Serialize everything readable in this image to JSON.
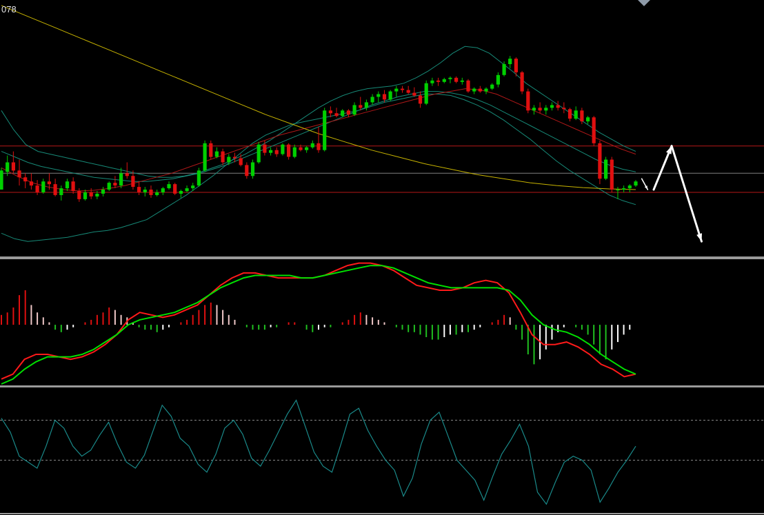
{
  "header": {
    "price_label": "078"
  },
  "colors": {
    "background": "#000000",
    "bull": "#00d000",
    "bear": "#e01010",
    "ma_long": "#c8b400",
    "ma_mid": "#b01818",
    "bands": "#178a78",
    "hline": "#b81818",
    "hline_mid": "#808080",
    "panel_border": "#a0a0a0",
    "macd_fast": "#ff1a1a",
    "macd_slow": "#00e000",
    "hist_pos_strong": "#e01010",
    "hist_pos_weak": "#f0c8c8",
    "hist_neg_strong": "#20c020",
    "hist_neg_weak": "#ffffff",
    "osc": "#1a8a8a",
    "arrow": "#ffffff",
    "marker": "#8e9aa8"
  },
  "chart_data": [
    {
      "type": "candlestick",
      "panel": "price",
      "candles": [
        [
          2,
          18,
          2,
          16
        ],
        [
          15,
          27,
          12,
          22
        ],
        [
          22,
          30,
          14,
          16
        ],
        [
          16,
          24,
          5,
          11
        ],
        [
          11,
          14,
          3,
          8
        ],
        [
          8,
          14,
          2,
          5
        ],
        [
          5,
          9,
          -2,
          0
        ],
        [
          0,
          10,
          -1,
          8
        ],
        [
          8,
          14,
          2,
          6
        ],
        [
          6,
          10,
          -3,
          -2
        ],
        [
          -2,
          5,
          -6,
          3
        ],
        [
          3,
          10,
          1,
          8
        ],
        [
          8,
          11,
          -1,
          1
        ],
        [
          1,
          3,
          -7,
          -5
        ],
        [
          -5,
          2,
          -6,
          0
        ],
        [
          0,
          3,
          -5,
          -3
        ],
        [
          -3,
          1,
          -5,
          -1
        ],
        [
          -1,
          4,
          -3,
          2
        ],
        [
          2,
          8,
          1,
          7
        ],
        [
          7,
          12,
          3,
          5
        ],
        [
          5,
          18,
          3,
          14
        ],
        [
          14,
          22,
          10,
          12
        ],
        [
          12,
          16,
          2,
          4
        ],
        [
          4,
          8,
          -2,
          0
        ],
        [
          0,
          4,
          -3,
          2
        ],
        [
          2,
          5,
          -4,
          -2
        ],
        [
          -2,
          2,
          -3,
          0
        ],
        [
          0,
          4,
          -2,
          3
        ],
        [
          3,
          8,
          2,
          6
        ],
        [
          6,
          7,
          -2,
          -1
        ],
        [
          -1,
          2,
          -4,
          1
        ],
        [
          1,
          5,
          0,
          3
        ],
        [
          3,
          7,
          1,
          5
        ],
        [
          5,
          18,
          4,
          16
        ],
        [
          16,
          38,
          15,
          36
        ],
        [
          36,
          38,
          24,
          26
        ],
        [
          26,
          33,
          25,
          30
        ],
        [
          30,
          32,
          20,
          22
        ],
        [
          22,
          28,
          20,
          26
        ],
        [
          26,
          29,
          22,
          25
        ],
        [
          25,
          28,
          19,
          20
        ],
        [
          20,
          22,
          10,
          12
        ],
        [
          12,
          24,
          10,
          22
        ],
        [
          22,
          37,
          21,
          35
        ],
        [
          35,
          38,
          27,
          29
        ],
        [
          29,
          33,
          27,
          31
        ],
        [
          31,
          33,
          26,
          28
        ],
        [
          28,
          36,
          27,
          35
        ],
        [
          35,
          36,
          24,
          26
        ],
        [
          26,
          35,
          25,
          33
        ],
        [
          33,
          35,
          30,
          31
        ],
        [
          31,
          34,
          29,
          33
        ],
        [
          33,
          38,
          32,
          36
        ],
        [
          36,
          48,
          29,
          31
        ],
        [
          31,
          62,
          30,
          60
        ],
        [
          60,
          63,
          55,
          58
        ],
        [
          58,
          62,
          55,
          56
        ],
        [
          56,
          61,
          55,
          60
        ],
        [
          60,
          61,
          55,
          57
        ],
        [
          57,
          66,
          56,
          64
        ],
        [
          64,
          70,
          60,
          62
        ],
        [
          62,
          68,
          60,
          66
        ],
        [
          66,
          72,
          64,
          70
        ],
        [
          70,
          74,
          66,
          72
        ],
        [
          72,
          75,
          66,
          68
        ],
        [
          68,
          75,
          67,
          74
        ],
        [
          74,
          78,
          70,
          76
        ],
        [
          76,
          78,
          73,
          75
        ],
        [
          75,
          78,
          72,
          73
        ],
        [
          73,
          77,
          70,
          71
        ],
        [
          71,
          74,
          62,
          65
        ],
        [
          65,
          82,
          64,
          80
        ],
        [
          80,
          84,
          78,
          82
        ],
        [
          82,
          84,
          78,
          81
        ],
        [
          81,
          84,
          80,
          83
        ],
        [
          83,
          85,
          80,
          84
        ],
        [
          84,
          85,
          80,
          81
        ],
        [
          81,
          84,
          79,
          82
        ],
        [
          82,
          83,
          73,
          74
        ],
        [
          74,
          77,
          72,
          76
        ],
        [
          76,
          78,
          73,
          74
        ],
        [
          74,
          77,
          72,
          76
        ],
        [
          76,
          80,
          75,
          79
        ],
        [
          79,
          88,
          77,
          86
        ],
        [
          86,
          96,
          85,
          94
        ],
        [
          94,
          100,
          91,
          98
        ],
        [
          98,
          99,
          85,
          88
        ],
        [
          88,
          89,
          72,
          74
        ],
        [
          74,
          76,
          58,
          60
        ],
        [
          60,
          64,
          57,
          62
        ],
        [
          62,
          66,
          58,
          60
        ],
        [
          60,
          64,
          57,
          62
        ],
        [
          62,
          66,
          60,
          64
        ],
        [
          64,
          67,
          60,
          62
        ],
        [
          62,
          66,
          58,
          61
        ],
        [
          61,
          62,
          52,
          54
        ],
        [
          54,
          63,
          53,
          60
        ],
        [
          60,
          62,
          50,
          52
        ],
        [
          52,
          56,
          50,
          55
        ],
        [
          55,
          56,
          34,
          36
        ],
        [
          36,
          38,
          6,
          10
        ],
        [
          10,
          26,
          9,
          24
        ],
        [
          24,
          26,
          0,
          2
        ],
        [
          2,
          4,
          -5,
          2
        ],
        [
          2,
          5,
          0,
          3
        ],
        [
          3,
          6,
          0,
          5
        ],
        [
          5,
          9,
          4,
          8
        ]
      ],
      "moving_average_long": [
        137,
        129,
        121,
        113,
        105,
        97,
        89,
        81,
        73,
        65,
        57,
        50,
        43,
        37,
        31,
        26,
        21,
        17,
        13,
        10,
        7,
        5,
        3.5,
        2.5,
        2
      ],
      "moving_average_mid": [
        18,
        12,
        7,
        4,
        2,
        1,
        1.5,
        3,
        5,
        8,
        11,
        14,
        18,
        22,
        26,
        30,
        34,
        38,
        42,
        45,
        48,
        51,
        54,
        57,
        60,
        63,
        66,
        69,
        72,
        74,
        76,
        75,
        72,
        67,
        62,
        57,
        52,
        47,
        42,
        37,
        32,
        28
      ],
      "bollinger_upper": [
        60,
        46,
        35,
        30,
        28,
        26,
        24,
        22,
        20,
        18,
        16,
        14,
        12,
        11,
        11,
        12,
        14,
        17,
        20,
        24,
        28,
        33,
        38,
        44,
        50,
        56,
        62,
        67,
        71,
        74,
        76,
        77,
        78,
        80,
        84,
        89,
        95,
        102,
        107,
        106,
        102,
        95,
        88,
        80,
        74,
        68,
        62,
        56,
        50,
        44,
        39,
        34,
        30
      ],
      "bollinger_mid": [
        30,
        26,
        22,
        19,
        17,
        15,
        13,
        11,
        10,
        9,
        8,
        8,
        9,
        10,
        12,
        14,
        17,
        20,
        24,
        28,
        32,
        36,
        40,
        44,
        48,
        52,
        56,
        60,
        64,
        67,
        70,
        72,
        74,
        74,
        73,
        71,
        68,
        64,
        59,
        54,
        49,
        44,
        39,
        34,
        29,
        24,
        20,
        17,
        15
      ],
      "bollinger_lower": [
        -30,
        -34,
        -36,
        -35,
        -34,
        -33,
        -31,
        -29,
        -28,
        -26,
        -23,
        -20,
        -14,
        -8,
        -2,
        5,
        12,
        20,
        28,
        36,
        42,
        46,
        50,
        52,
        54,
        56,
        58,
        60,
        63,
        66,
        68,
        70,
        72,
        72,
        71,
        68,
        64,
        59,
        53,
        46,
        39,
        31,
        23,
        16,
        10,
        4,
        -2,
        -6,
        -9
      ],
      "horizontal_levels": [
        34,
        14,
        0
      ],
      "projection_arrows": [
        [
          [
            107,
            10
          ],
          [
            108,
            2
          ]
        ],
        [
          [
            109,
            2
          ],
          [
            112,
            34
          ]
        ],
        [
          [
            112,
            34
          ],
          [
            117,
            -36
          ]
        ]
      ]
    },
    {
      "type": "bar",
      "panel": "macd_histogram",
      "values": [
        4,
        5,
        7,
        12,
        14,
        8,
        5,
        3,
        1,
        -2,
        -3,
        -2,
        -1,
        0,
        1,
        2,
        4,
        5,
        7,
        6,
        4,
        3,
        1,
        -1,
        -2,
        -2,
        -3,
        -2,
        -1,
        0,
        1,
        2,
        4,
        6,
        8,
        9,
        8,
        6,
        4,
        2,
        0,
        -1,
        -2,
        -2,
        -2,
        -1,
        -1,
        0,
        1,
        1,
        0,
        -2,
        -3,
        -2,
        -1,
        -1,
        0,
        1,
        2,
        4,
        5,
        4,
        3,
        2,
        1,
        0,
        -1,
        -2,
        -3,
        -3,
        -4,
        -5,
        -6,
        -6,
        -5,
        -4,
        -4,
        -3,
        -3,
        -2,
        -1,
        0,
        1,
        2,
        4,
        3,
        -2,
        -6,
        -12,
        -16,
        -14,
        -10,
        -6,
        -3,
        -1,
        0,
        -1,
        -2,
        -4,
        -8,
        -12,
        -14,
        -10,
        -7,
        -4,
        -2,
        0
      ]
    },
    {
      "type": "line",
      "panel": "macd_signal_lines",
      "series": [
        {
          "values": [
            -22,
            -20,
            -14,
            -12,
            -12,
            -13,
            -14,
            -13,
            -11,
            -8,
            -4,
            2,
            5,
            4,
            3,
            4,
            6,
            8,
            12,
            16,
            19,
            21,
            21,
            20,
            19,
            19,
            19,
            19,
            20,
            22,
            24,
            25,
            25,
            24,
            22,
            19,
            16,
            15,
            14,
            14,
            15,
            17,
            18,
            17,
            13,
            5,
            -4,
            -8,
            -8,
            -7,
            -9,
            -12,
            -16,
            -18,
            -21,
            -20
          ]
        },
        {
          "values": [
            -24,
            -22,
            -18,
            -15,
            -13,
            -13,
            -13,
            -12,
            -10,
            -7,
            -4,
            0,
            2,
            3,
            4,
            5,
            7,
            9,
            12,
            15,
            17,
            19,
            20,
            20,
            20,
            20,
            19,
            19,
            20,
            21,
            22,
            23,
            24,
            24,
            23,
            21,
            19,
            17,
            16,
            15,
            15,
            15,
            15,
            15,
            14,
            10,
            4,
            0,
            -2,
            -3,
            -5,
            -8,
            -12,
            -15,
            -18,
            -20
          ]
        }
      ]
    },
    {
      "type": "line",
      "panel": "oscillator",
      "series": [
        {
          "values": [
            72,
            58,
            34,
            28,
            22,
            44,
            70,
            62,
            44,
            34,
            40,
            55,
            68,
            46,
            28,
            22,
            35,
            60,
            85,
            74,
            52,
            44,
            26,
            18,
            36,
            62,
            70,
            56,
            32,
            24,
            40,
            58,
            76,
            90,
            64,
            38,
            24,
            18,
            46,
            76,
            82,
            60,
            44,
            30,
            20,
            -6,
            12,
            46,
            70,
            78,
            54,
            30,
            20,
            10,
            -10,
            14,
            36,
            50,
            66,
            44,
            -2,
            -14,
            8,
            28,
            34,
            30,
            20,
            -12,
            2,
            18,
            30,
            44
          ]
        }
      ],
      "levels": [
        70,
        30
      ]
    }
  ]
}
